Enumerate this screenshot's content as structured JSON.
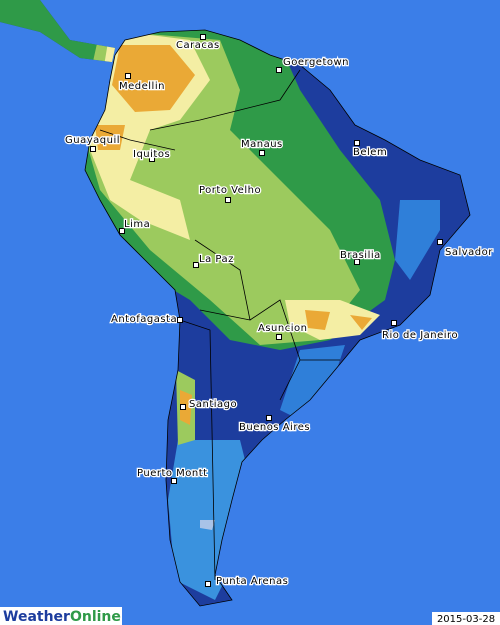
{
  "cities": [
    "Caracas",
    "Goergetown",
    "Medellin",
    "Manaus",
    "Belem",
    "Guayaquil",
    "Iquitos",
    "Porto Velho",
    "Salvador",
    "Lima",
    "Brasilia",
    "La Paz",
    "Antofagasta",
    "Asuncion",
    "Rio de Janeiro",
    "Santiago",
    "Buenos Aires",
    "Puerto Montt",
    "Punta Arenas"
  ],
  "logo": {
    "first": "Weather",
    "second": "Online"
  },
  "date": "2015-03-28"
}
